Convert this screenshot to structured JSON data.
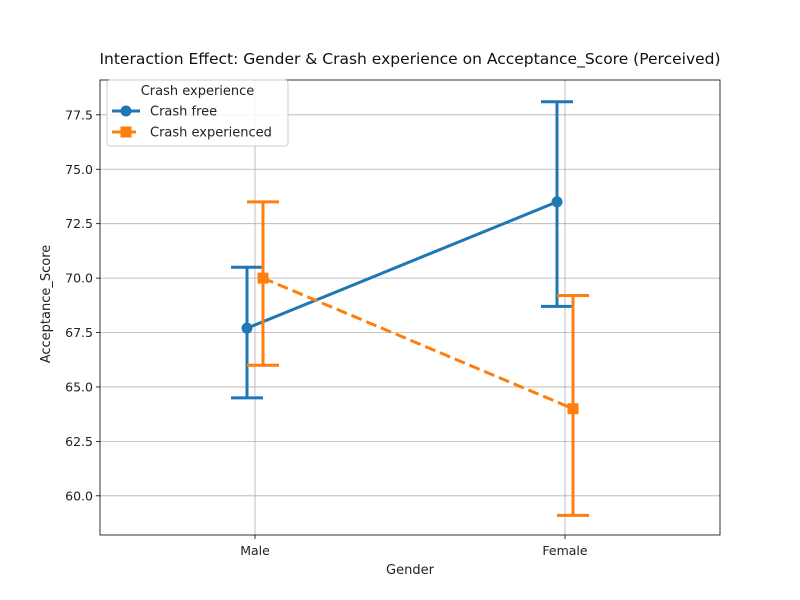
{
  "chart_data": {
    "type": "line",
    "title": "Interaction Effect: Gender & Crash experience on Acceptance_Score (Perceived)",
    "xlabel": "Gender",
    "ylabel": "Acceptance_Score",
    "categories": [
      "Male",
      "Female"
    ],
    "ylim": [
      58.2,
      79.1
    ],
    "yticks": [
      60.0,
      62.5,
      65.0,
      67.5,
      70.0,
      72.5,
      75.0,
      77.5
    ],
    "grid": true,
    "legend": {
      "title": "Crash experience",
      "placement": "top-left"
    },
    "series": [
      {
        "name": "Crash free",
        "color": "#1f77b4",
        "marker": "circle",
        "linestyle": "solid",
        "values": [
          67.7,
          73.5
        ],
        "ci_low": [
          64.5,
          68.7
        ],
        "ci_high": [
          70.5,
          78.1
        ]
      },
      {
        "name": "Crash experienced",
        "color": "#ff7f0e",
        "marker": "square",
        "linestyle": "dashed",
        "values": [
          70.0,
          64.0
        ],
        "ci_low": [
          66.0,
          59.1
        ],
        "ci_high": [
          73.5,
          69.2
        ]
      }
    ]
  }
}
